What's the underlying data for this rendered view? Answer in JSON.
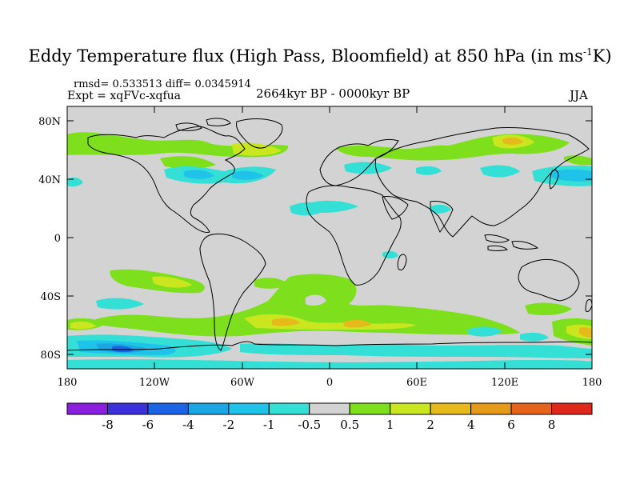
{
  "title": {
    "main": "Eddy Temperature flux (High Pass, Bloomfield) at 850 hPa (in ms",
    "sup": "-1",
    "tail": "K)"
  },
  "stats": "rmsd= 0.533513 diff= 0.0345914",
  "experiment": "Expt = xqFVc-xqfua",
  "period": "2664kyr BP - 0000kyr BP",
  "season": "JJA",
  "lat_labels": [
    "80N",
    "40N",
    "0",
    "40S",
    "80S"
  ],
  "lon_labels": [
    "180",
    "120W",
    "60W",
    "0",
    "60E",
    "120E",
    "180"
  ],
  "colorbar": {
    "labels": [
      "-8",
      "-6",
      "-4",
      "-2",
      "-1",
      "-0.5",
      "0.5",
      "1",
      "2",
      "4",
      "6",
      "8"
    ],
    "colors": [
      "#8a1fe0",
      "#3c2fdc",
      "#1c64e6",
      "#1aa6e2",
      "#1fc2e8",
      "#34e0d6",
      "#d3d3d3",
      "#7ee01c",
      "#c9e61e",
      "#e6ba1a",
      "#e69a1a",
      "#e6621a",
      "#e0281a"
    ]
  },
  "colors": {
    "background": "#d3d3d3",
    "coast": "#000000"
  }
}
